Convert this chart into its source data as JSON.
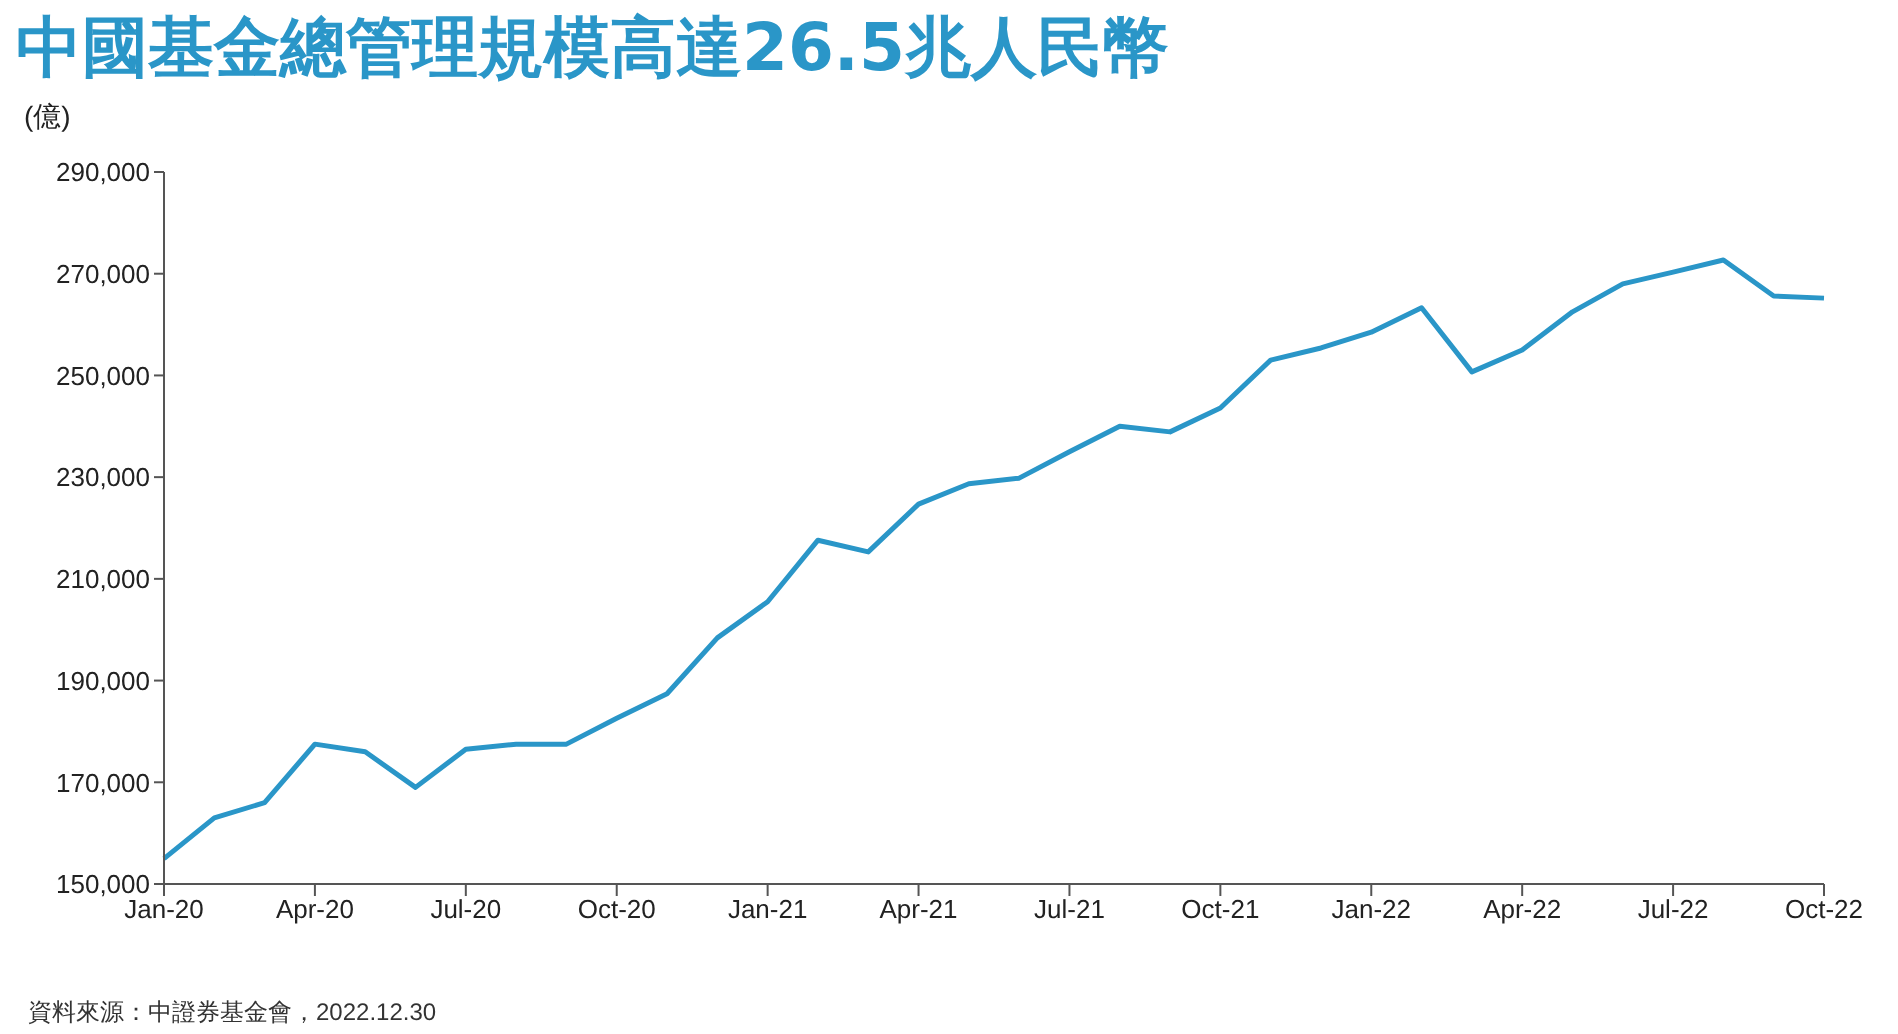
{
  "chart_data": {
    "type": "line",
    "title": "中國基金總管理規模高達26.5兆人民幣",
    "ylabel": "(億)",
    "annotations": [
      "資料來源：中證券基金會，2022.12.30"
    ],
    "categories": [
      "Jan-20",
      null,
      null,
      "Apr-20",
      null,
      null,
      "Jul-20",
      null,
      null,
      "Oct-20",
      null,
      null,
      "Jan-21",
      null,
      null,
      "Apr-21",
      null,
      null,
      "Jul-21",
      null,
      null,
      "Oct-21",
      null,
      null,
      "Jan-22",
      null,
      null,
      "Apr-22",
      null,
      null,
      "Jul-22",
      null,
      null,
      "Oct-22"
    ],
    "series": [
      {
        "color": "#2a96c8",
        "values": [
          155000,
          163000,
          166000,
          177500,
          176000,
          169000,
          176500,
          177500,
          177500,
          182600,
          187400,
          198400,
          205500,
          217600,
          215300,
          224700,
          228700,
          229800,
          235000,
          240000,
          238900,
          243600,
          253000,
          255400,
          258500,
          263300,
          250700,
          255000,
          262500,
          268000,
          270300,
          272700,
          265600,
          265200
        ]
      }
    ],
    "ylim": [
      150000,
      290000
    ],
    "yticks": [
      {
        "value": 150000,
        "label": "150,000"
      },
      {
        "value": 170000,
        "label": "170,000"
      },
      {
        "value": 190000,
        "label": "190,000"
      },
      {
        "value": 210000,
        "label": "210,000"
      },
      {
        "value": 230000,
        "label": "230,000"
      },
      {
        "value": 250000,
        "label": "250,000"
      },
      {
        "value": 270000,
        "label": "270,000"
      },
      {
        "value": 290000,
        "label": "290,000"
      }
    ],
    "grid": false,
    "legend": false,
    "marker": "none",
    "line_style": "solid"
  }
}
